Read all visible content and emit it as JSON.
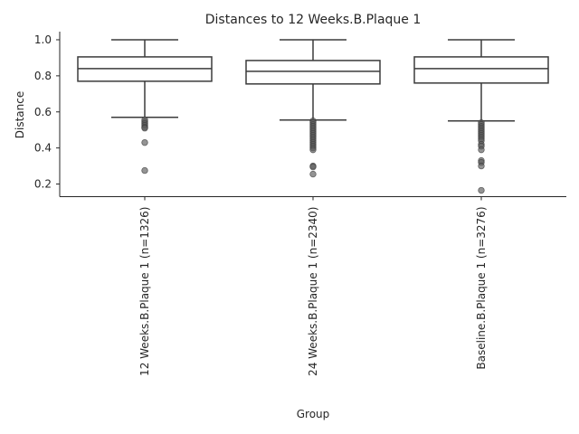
{
  "chart_data": {
    "type": "box",
    "title": "Distances to 12 Weeks.B.Plaque 1",
    "xlabel": "Group",
    "ylabel": "Distance",
    "ylim": [
      0.13,
      1.045
    ],
    "yticks": [
      "0.2",
      "0.4",
      "0.6",
      "0.8",
      "1.0"
    ],
    "ytick_values": [
      0.2,
      0.4,
      0.6,
      0.8,
      1.0
    ],
    "grid": false,
    "groups": [
      {
        "label": "12 Weeks.B.Plaque 1 (n=1326)",
        "whisker_low": 0.57,
        "q1": 0.77,
        "median": 0.84,
        "q3": 0.905,
        "whisker_high": 1.0,
        "outliers": [
          0.555,
          0.545,
          0.535,
          0.525,
          0.515,
          0.51,
          0.43,
          0.275
        ]
      },
      {
        "label": "24 Weeks.B.Plaque 1 (n=2340)",
        "whisker_low": 0.555,
        "q1": 0.755,
        "median": 0.825,
        "q3": 0.885,
        "whisker_high": 1.0,
        "outliers": [
          0.55,
          0.54,
          0.53,
          0.52,
          0.51,
          0.5,
          0.49,
          0.48,
          0.47,
          0.46,
          0.45,
          0.44,
          0.43,
          0.42,
          0.41,
          0.4,
          0.39,
          0.3,
          0.295,
          0.255
        ]
      },
      {
        "label": "Baseline.B.Plaque 1 (n=3276)",
        "whisker_low": 0.55,
        "q1": 0.76,
        "median": 0.84,
        "q3": 0.905,
        "whisker_high": 1.0,
        "outliers": [
          0.54,
          0.53,
          0.52,
          0.51,
          0.5,
          0.49,
          0.48,
          0.47,
          0.46,
          0.45,
          0.44,
          0.42,
          0.41,
          0.39,
          0.33,
          0.32,
          0.3,
          0.165
        ]
      }
    ]
  }
}
